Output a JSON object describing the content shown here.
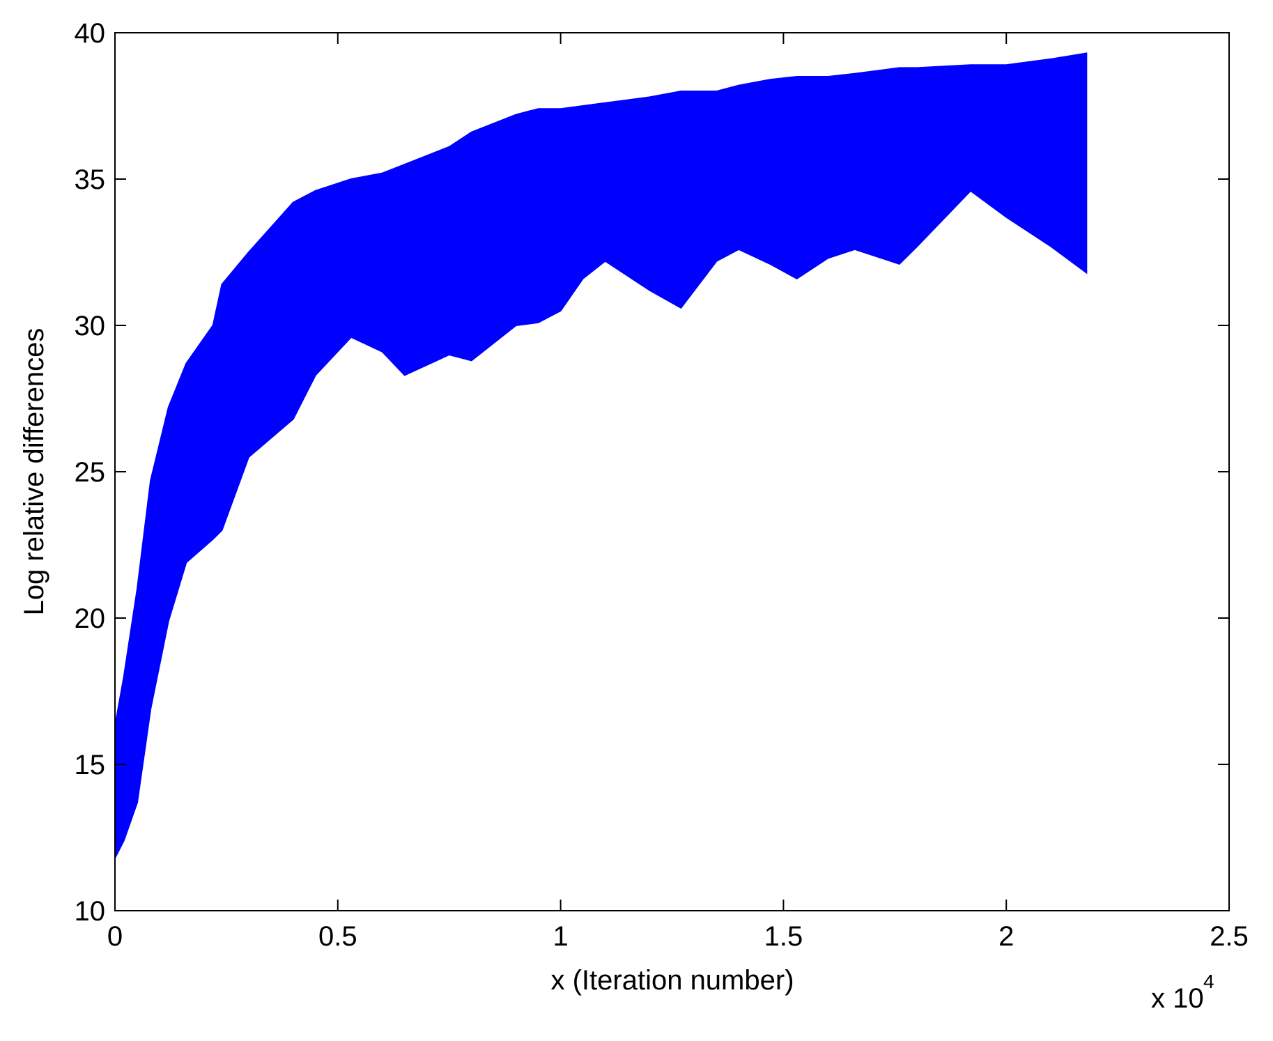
{
  "chart_data": {
    "type": "area",
    "x_label": "x (Iteration number)",
    "y_label": "Log relative differences",
    "x_multiplier": {
      "base": "x 10",
      "exponent": "4"
    },
    "color": "#0000ff",
    "x": [
      0,
      0.02,
      0.05,
      0.08,
      0.12,
      0.16,
      0.22,
      0.24,
      0.3,
      0.4,
      0.45,
      0.53,
      0.6,
      0.65,
      0.75,
      0.8,
      0.9,
      0.95,
      1.0,
      1.05,
      1.1,
      1.2,
      1.27,
      1.35,
      1.4,
      1.47,
      1.53,
      1.6,
      1.66,
      1.76,
      1.8,
      1.92,
      2.0,
      2.1,
      2.18
    ],
    "upper": [
      16.3,
      18,
      21,
      24.7,
      27.2,
      28.7,
      30,
      31.4,
      32.5,
      34.2,
      34.6,
      35,
      35.2,
      35.5,
      36.1,
      36.6,
      37.2,
      37.4,
      37.4,
      37.5,
      37.6,
      37.8,
      38,
      38,
      38.2,
      38.4,
      38.5,
      38.5,
      38.6,
      38.8,
      38.8,
      38.9,
      38.9,
      39.1,
      39.3
    ],
    "lower": [
      11.8,
      12.4,
      13.7,
      16.9,
      19.9,
      21.9,
      22.7,
      23,
      25.5,
      26.8,
      28.3,
      29.6,
      29.1,
      28.3,
      29,
      28.8,
      30,
      30.1,
      30.5,
      31.6,
      32.2,
      31.2,
      30.6,
      32.2,
      32.6,
      32.1,
      31.6,
      32.3,
      32.6,
      32.1,
      32.7,
      34.6,
      33.7,
      32.7,
      31.8
    ],
    "xlim": [
      0,
      2.5
    ],
    "xticks": [
      0,
      0.5,
      1,
      1.5,
      2,
      2.5
    ],
    "ylim": [
      10,
      40
    ],
    "yticks": [
      10,
      15,
      20,
      25,
      30,
      35,
      40
    ]
  }
}
